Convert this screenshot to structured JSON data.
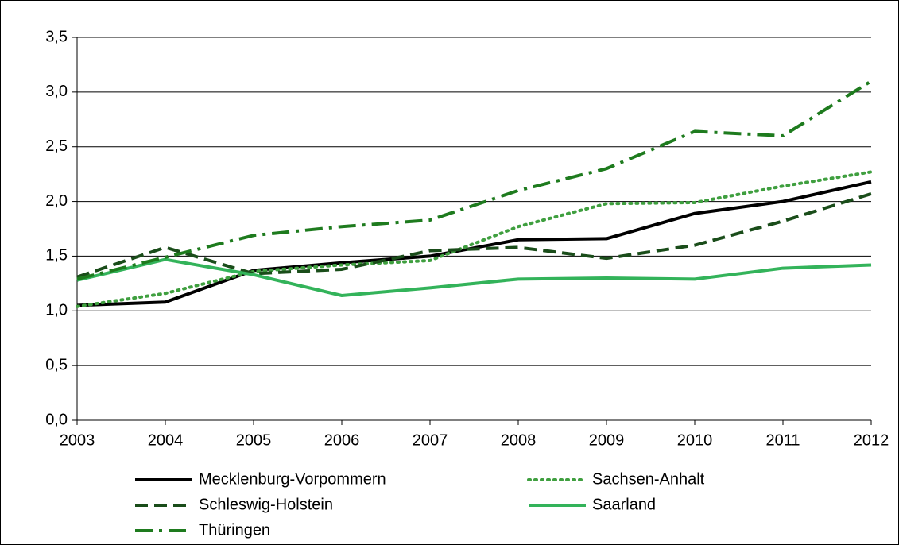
{
  "chart_data": {
    "type": "line",
    "x": [
      2003,
      2004,
      2005,
      2006,
      2007,
      2008,
      2009,
      2010,
      2011,
      2012
    ],
    "xlim": [
      2003,
      2012
    ],
    "xticks": [
      2003,
      2004,
      2005,
      2006,
      2007,
      2008,
      2009,
      2010,
      2011,
      2012
    ],
    "ylim": [
      0,
      3.5
    ],
    "yticks": [
      {
        "value": 0,
        "label": "0,0"
      },
      {
        "value": 0.5,
        "label": "0,5"
      },
      {
        "value": 1,
        "label": "1,0"
      },
      {
        "value": 1.5,
        "label": "1,5"
      },
      {
        "value": 2,
        "label": "2,0"
      },
      {
        "value": 2.5,
        "label": "2,5"
      },
      {
        "value": 3,
        "label": "3,0"
      },
      {
        "value": 3.5,
        "label": "3,5"
      }
    ],
    "grid": true,
    "legend": "bottom",
    "series": [
      {
        "name": "Mecklenburg-Vorpommern",
        "color": "#000000",
        "dash": "solid",
        "values": [
          1.05,
          1.08,
          1.37,
          1.44,
          1.5,
          1.65,
          1.66,
          1.89,
          2.0,
          2.18
        ]
      },
      {
        "name": "Sachsen-Anhalt",
        "color": "#3f9f3f",
        "dash": "dotted",
        "values": [
          1.04,
          1.16,
          1.36,
          1.42,
          1.46,
          1.77,
          1.98,
          1.99,
          2.14,
          2.27
        ]
      },
      {
        "name": "Schleswig-Holstein",
        "color": "#1a4d1a",
        "dash": "dashed",
        "values": [
          1.31,
          1.58,
          1.34,
          1.38,
          1.55,
          1.58,
          1.48,
          1.6,
          1.82,
          2.07
        ]
      },
      {
        "name": "Saarland",
        "color": "#33b35a",
        "dash": "solid",
        "values": [
          1.28,
          1.47,
          1.33,
          1.14,
          1.21,
          1.29,
          1.3,
          1.29,
          1.39,
          1.42
        ]
      },
      {
        "name": "Thüringen",
        "color": "#1e7b1e",
        "dash": "dashdot",
        "values": [
          1.29,
          1.49,
          1.69,
          1.77,
          1.83,
          2.1,
          2.3,
          2.64,
          2.6,
          3.1
        ]
      }
    ]
  }
}
